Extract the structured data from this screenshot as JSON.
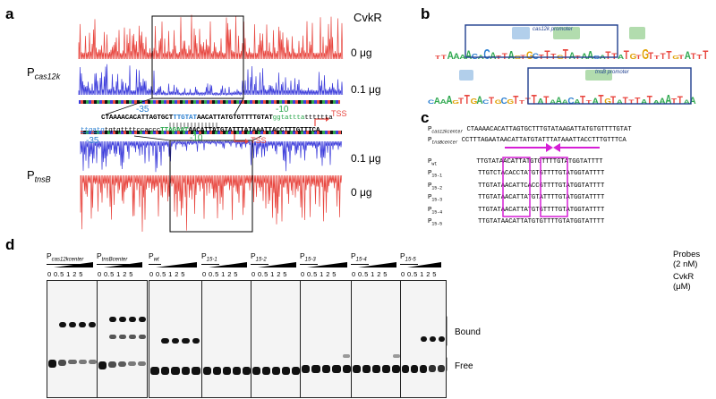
{
  "panels": {
    "a": {
      "letter": "a",
      "title": "CvkR",
      "trace_labels": [
        "0 μg",
        "0.1 μg",
        "0.1 μg",
        "0 μg"
      ],
      "promoter_top_main": "P",
      "promoter_top_sub": "cas12k",
      "promoter_bottom_main": "P",
      "promoter_bottom_sub": "tnsB",
      "seq1": "CTAAAACACATTAGTGCT",
      "seq1_blue": "TTGTAT",
      "seq1_mid": "AACATTATGTGTTTTGTAT",
      "seq1_green": "gg",
      "seq1_end": "tattta",
      "seq1_tail": "tttttta",
      "minus35_top": "-35",
      "minus10_top": "-10",
      "tss_top": "TSS",
      "seq2_blue": "ttgatg",
      "seq2_a": "tgtgttttccaccc",
      "seq2_green": "TTAGAAT",
      "seq2_b": "AACATTATGTATTTATAAATTACCTTTGTTTCA",
      "minus35_bottom": "-35",
      "minus10_bottom": "-10",
      "tss_bottom": "TSS"
    },
    "b": {
      "letter": "b",
      "logo1_label": "cas12k promoter",
      "logo2_label": "tnsB promoter"
    },
    "c": {
      "letter": "c",
      "header_rows": [
        {
          "main": "P",
          "sub": "cas12kcenter",
          "seq": "CTAAAACACATTAGTGCTTTGTATAAGATTATGTGTTTTGTAT"
        },
        {
          "main": "P",
          "sub": "tnsBcenter",
          "seq": "CCTTTAGAATAACATTATGTATTTATAAATTACCTTTGTTTCA"
        }
      ],
      "mutant_rows": [
        {
          "main": "P",
          "sub": "wt",
          "seq": "TTGTATAACATTATGTGTTTTGTATGGTATTTT"
        },
        {
          "main": "P",
          "sub": "15-1",
          "seq": "TTGTCTACACCTATGTGTTTTGTATGGTATTTT"
        },
        {
          "main": "P",
          "sub": "15-2",
          "seq": "TTGTATAACATTCACCGTTTTGTATGGTATTTT"
        },
        {
          "main": "P",
          "sub": "15-3",
          "seq": "TTGTATAACATTATGTATTTTGTATGGTATTTT"
        },
        {
          "main": "P",
          "sub": "15-4",
          "seq": "TTGTATAACATTATGTGTTTTGTATGGTATTTT"
        },
        {
          "main": "P",
          "sub": "15-5",
          "seq": "TTGTATAACATTATGTGTTTTGTATGGTATTTT"
        }
      ]
    },
    "d": {
      "letter": "d",
      "probes_label": "Probes",
      "probes_conc": "(2 nM)",
      "cvkr_label": "CvkR",
      "cvkr_unit": "(μM)",
      "bound_label": "Bound",
      "free_label": "Free",
      "concentrations": "0 0.5 1 2 5",
      "gels": [
        {
          "main": "P",
          "sub": "cas12kcenter"
        },
        {
          "main": "P",
          "sub": "tnsBcenter"
        },
        {
          "main": "P",
          "sub": "wt"
        },
        {
          "main": "P",
          "sub": "15-1"
        },
        {
          "main": "P",
          "sub": "15-2"
        },
        {
          "main": "P",
          "sub": "15-3"
        },
        {
          "main": "P",
          "sub": "15-4"
        },
        {
          "main": "P",
          "sub": "15-5"
        }
      ]
    }
  },
  "colors": {
    "red": "#e8463f",
    "blue": "#3d3ddb",
    "green": "#2fa84f",
    "magenta": "#d61ed6",
    "seq_blue": "#2b7fd0",
    "dark_blue": "#1f3f8f"
  }
}
